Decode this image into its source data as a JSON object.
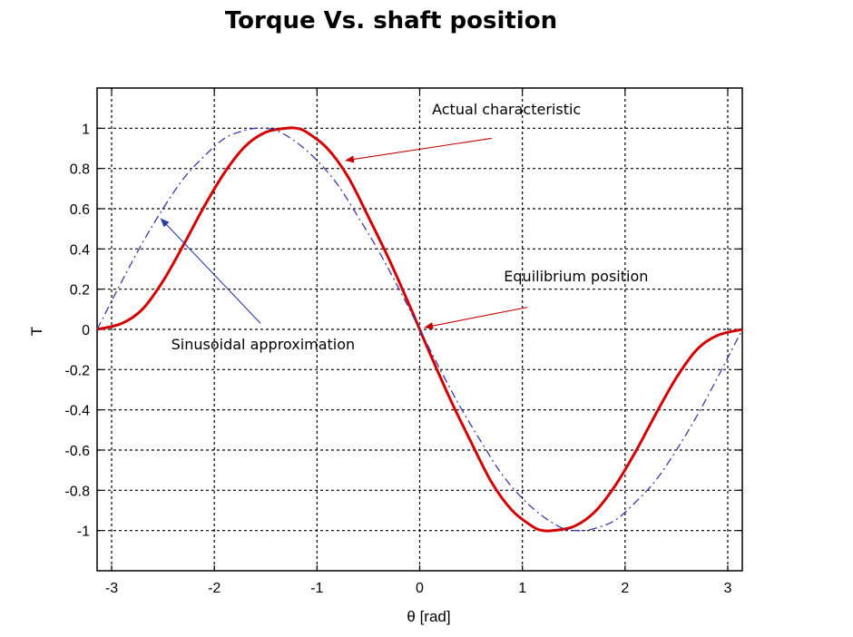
{
  "chart_data": {
    "type": "line",
    "title": "Torque Vs. shaft position",
    "xlabel": "θ  [rad]",
    "ylabel": "T",
    "xlim": [
      -3.1416,
      3.1416
    ],
    "ylim": [
      -1.2,
      1.2
    ],
    "grid": true,
    "xticks": [
      -3,
      -2,
      -1,
      0,
      1,
      2,
      3
    ],
    "yticks": [
      1,
      0.8,
      0.6,
      0.4,
      0.2,
      0,
      -0.2,
      -0.4,
      -0.6,
      -0.8,
      -1
    ],
    "ytick_labels": [
      "1",
      "0.8",
      "0.6",
      "0.4",
      "0.2",
      "0",
      "-0.2",
      "-0.4",
      "-0.6",
      "-0.8",
      "-1"
    ],
    "series": [
      {
        "key": "actual",
        "style": "solid",
        "color": "#d40000",
        "x": [
          -3.1416,
          -2.9,
          -2.7,
          -2.5,
          -2.3,
          -2.1,
          -1.9,
          -1.7,
          -1.5,
          -1.3,
          -1.2,
          -1.1,
          -0.9,
          -0.7,
          -0.5,
          -0.3,
          -0.1,
          0,
          0.1,
          0.3,
          0.5,
          0.7,
          0.9,
          1.1,
          1.2,
          1.3,
          1.5,
          1.7,
          1.9,
          2.1,
          2.3,
          2.5,
          2.7,
          2.9,
          3.1416
        ],
        "y": [
          0.0,
          0.03,
          0.1,
          0.24,
          0.42,
          0.61,
          0.78,
          0.91,
          0.98,
          1.0,
          1.0,
          0.98,
          0.9,
          0.76,
          0.56,
          0.35,
          0.12,
          0.0,
          -0.12,
          -0.35,
          -0.56,
          -0.76,
          -0.9,
          -0.98,
          -1.0,
          -1.0,
          -0.98,
          -0.91,
          -0.78,
          -0.61,
          -0.42,
          -0.24,
          -0.1,
          -0.03,
          0.0
        ]
      },
      {
        "key": "approx",
        "style": "dashdot",
        "color": "#3a3aa8",
        "x": [
          -3.1416,
          -2.9,
          -2.7,
          -2.5,
          -2.3,
          -2.1,
          -1.9,
          -1.7,
          -1.5708,
          -1.4,
          -1.2,
          -1.0,
          -0.8,
          -0.6,
          -0.4,
          -0.2,
          0,
          0.2,
          0.4,
          0.6,
          0.8,
          1.0,
          1.2,
          1.4,
          1.5708,
          1.7,
          1.9,
          2.1,
          2.3,
          2.5,
          2.7,
          2.9,
          3.1416
        ],
        "y": [
          0.0,
          0.24,
          0.43,
          0.6,
          0.75,
          0.86,
          0.95,
          0.99,
          1.0,
          0.99,
          0.93,
          0.84,
          0.72,
          0.56,
          0.39,
          0.2,
          0.0,
          -0.2,
          -0.39,
          -0.56,
          -0.72,
          -0.84,
          -0.93,
          -0.99,
          -1.0,
          -0.99,
          -0.95,
          -0.86,
          -0.75,
          -0.6,
          -0.43,
          -0.24,
          0.0
        ]
      }
    ],
    "annotations": [
      {
        "key": "actual",
        "text": "Actual characteristic",
        "color": "#c00000",
        "arrow_to": [
          -0.72,
          0.84
        ],
        "arrow_from": [
          0.7,
          0.95
        ],
        "text_at": [
          0.12,
          1.07
        ]
      },
      {
        "key": "equilibrium",
        "text": "Equilibrium position",
        "color": "#c00000",
        "arrow_to": [
          0.05,
          0.01
        ],
        "arrow_from": [
          1.05,
          0.11
        ],
        "text_at": [
          0.82,
          0.24
        ]
      },
      {
        "key": "sinusoid",
        "text": "Sinusoidal approximation",
        "color": "#2b3aa8",
        "arrow_to": [
          -2.52,
          0.55
        ],
        "arrow_from": [
          -1.55,
          0.03
        ],
        "text_at": [
          -2.42,
          -0.1
        ]
      }
    ]
  }
}
